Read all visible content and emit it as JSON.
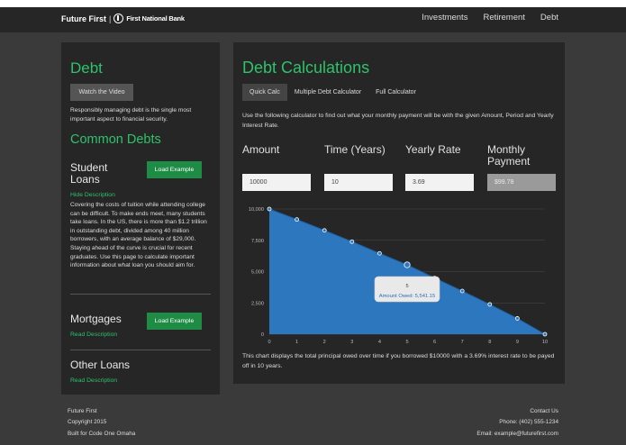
{
  "nav": {
    "brand_name": "Future First",
    "brand_sep": "|",
    "bank_name": "First National Bank",
    "links": [
      "Investments",
      "Retirement",
      "Debt"
    ]
  },
  "left": {
    "title": "Debt",
    "video_button": "Watch the Video",
    "intro": "Responsibly managing debt is the single most important aspect to financial security.",
    "common_title": "Common Debts",
    "loans": [
      {
        "title": "Student Loans",
        "button": "Load Example",
        "link": "Hide Description",
        "description": "Covering the costs of tuition while attending college can be difficult. To make ends meet, many students take loans. In the US, there is more than $1.2 trillion in outstanding debt, divided among 40 million borrowers, with an average balance of $29,000. Staying ahead of the curve is crucial for recent graduates. Use this page to calculate important information about what loan you should aim for."
      },
      {
        "title": "Mortgages",
        "button": "Load Example",
        "link": "Read Description"
      },
      {
        "title": "Other Loans",
        "link": "Read Description"
      }
    ]
  },
  "right": {
    "title": "Debt Calculations",
    "tabs": [
      "Quick Calc",
      "Multiple Debt Calculator",
      "Full Calculator"
    ],
    "intro": "Use the following calculator to find out what your monthly payment will be with the given Amount, Period and Yearly Interest Rate.",
    "fields": [
      {
        "label": "Amount",
        "value": "10000"
      },
      {
        "label": "Time (Years)",
        "value": "10"
      },
      {
        "label": "Yearly Rate",
        "value": "3.69"
      },
      {
        "label": "Monthly Payment",
        "value": "$99.78"
      }
    ],
    "note": "This chart displays the total principal owed over time if you borrowed $10000 with a 3.69% interest rate to be payed off in 10 years."
  },
  "chart_data": {
    "type": "area",
    "x": [
      0,
      1,
      2,
      3,
      4,
      5,
      6,
      7,
      8,
      9,
      10
    ],
    "values": [
      10000,
      9162,
      8293,
      7392,
      6458,
      5541,
      4487,
      3451,
      2377,
      1264,
      0
    ],
    "xlim": [
      0,
      10
    ],
    "ylim": [
      0,
      10000
    ],
    "y_ticks": [
      "0",
      "2,500",
      "5,000",
      "7,500",
      "10,000"
    ],
    "x_ticks": [
      "0",
      "1",
      "2",
      "3",
      "4",
      "5",
      "6",
      "7",
      "8",
      "9",
      "10"
    ],
    "tooltip": {
      "x_label": "5",
      "text": "Amount Owed: 5,541.15"
    },
    "fill_color": "#2d77bf",
    "line_color": "#1f5fa0"
  },
  "footer": {
    "left": [
      "Future First",
      "Copyright 2015",
      "Built for Code One Omaha"
    ],
    "right": [
      "Contact Us",
      "Phone: (402) 555-1234",
      "Email: example@futurefirst.com"
    ]
  }
}
